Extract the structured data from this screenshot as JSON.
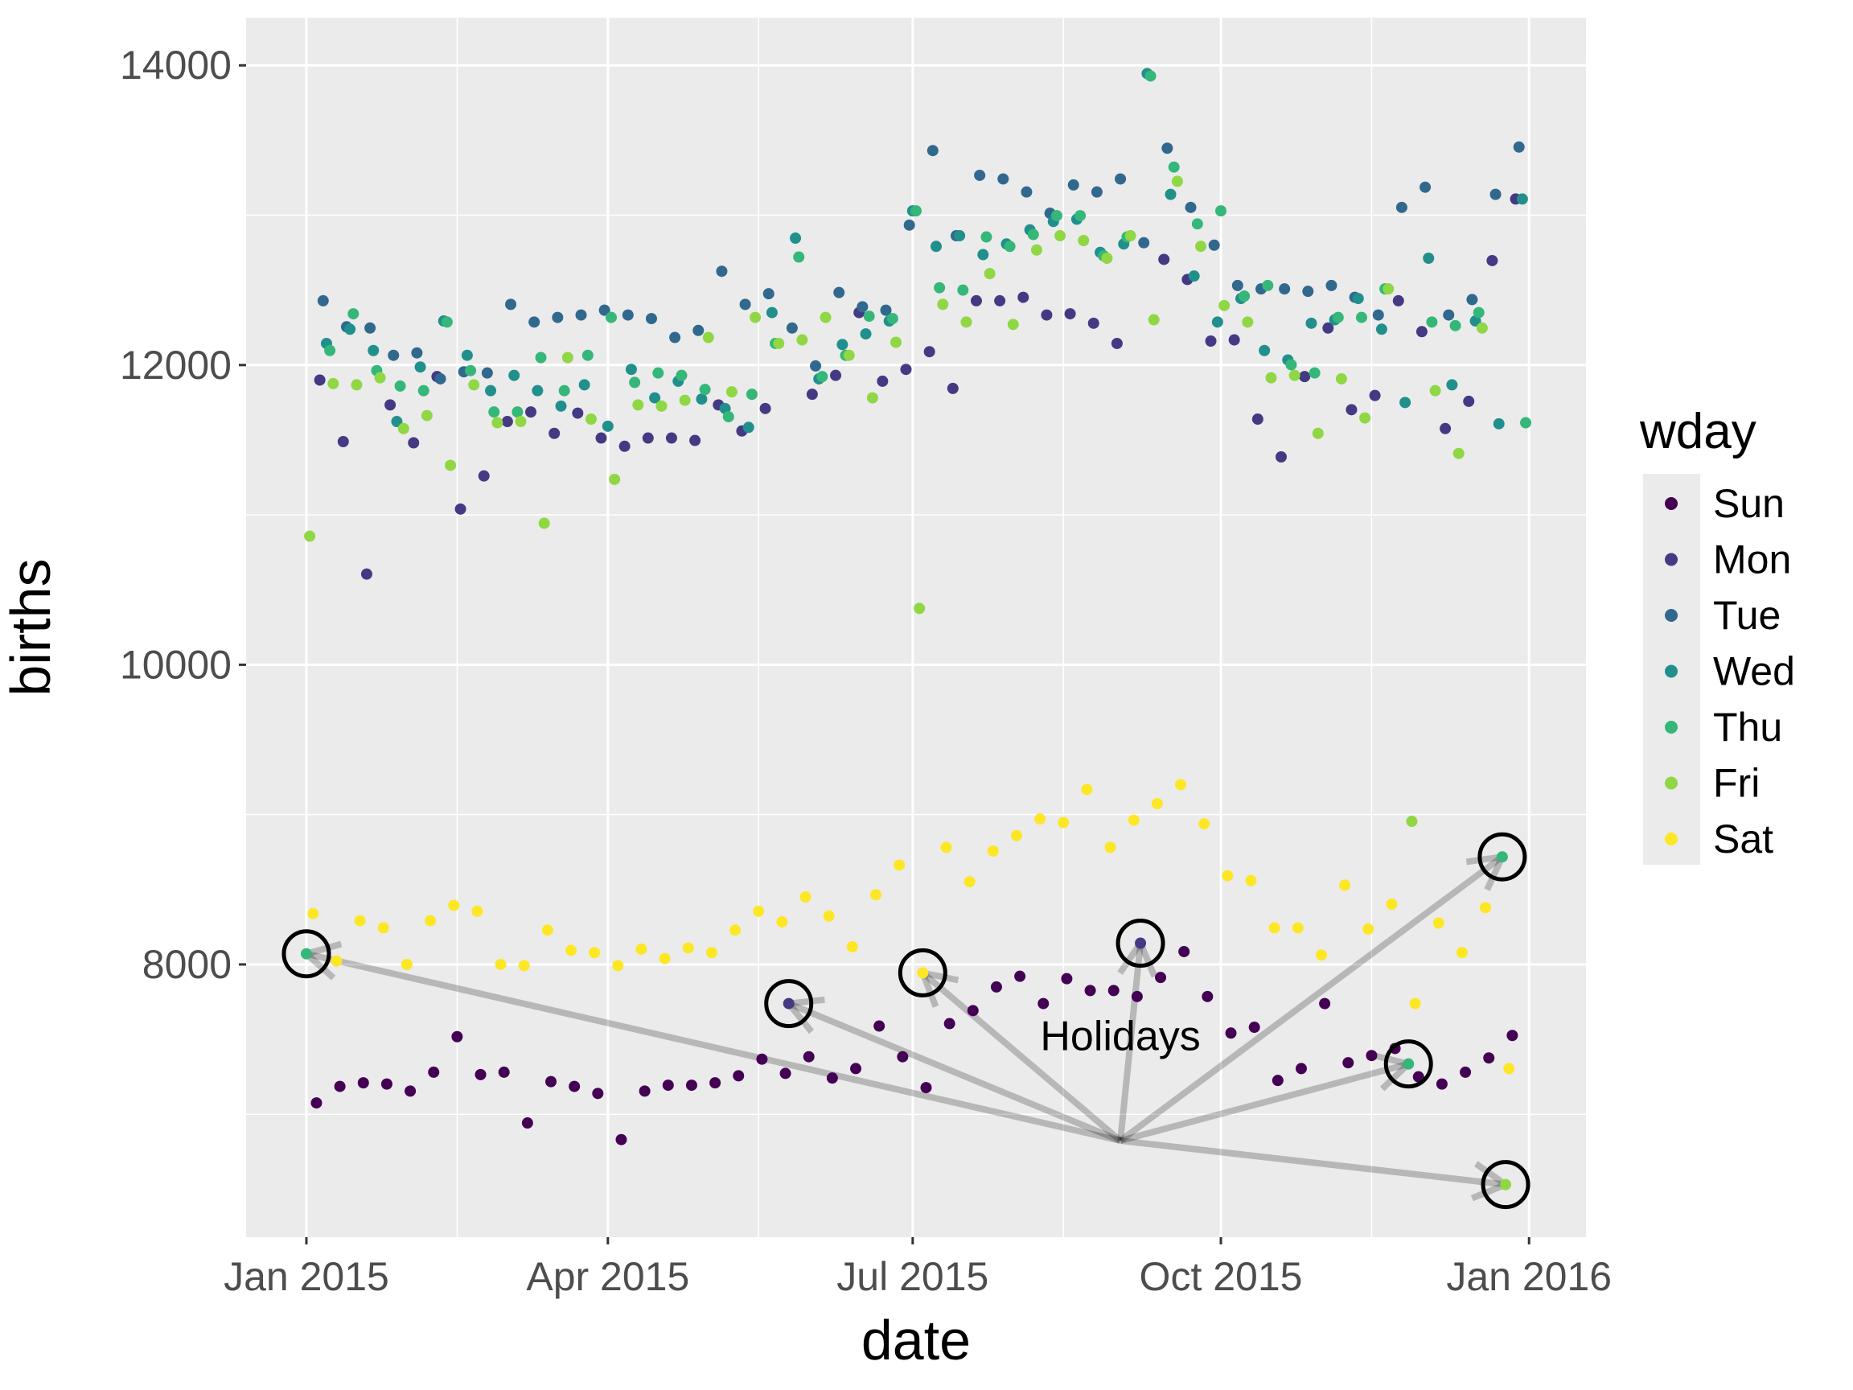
{
  "chart_data": {
    "type": "scatter",
    "title": "",
    "xlabel": "date",
    "ylabel": "births",
    "xlim": [
      "2014-12-14",
      "2016-01-18"
    ],
    "ylim": [
      6180,
      14318
    ],
    "grid": true,
    "x_ticks": [
      {
        "date": "2015-01-01",
        "label": "Jan 2015"
      },
      {
        "date": "2015-04-01",
        "label": "Apr 2015"
      },
      {
        "date": "2015-07-01",
        "label": "Jul 2015"
      },
      {
        "date": "2015-10-01",
        "label": "Oct 2015"
      },
      {
        "date": "2016-01-01",
        "label": "Jan 2016"
      }
    ],
    "x_minor_ticks": [
      "2015-02-15",
      "2015-05-16",
      "2015-08-15",
      "2015-11-15"
    ],
    "y_ticks": [
      {
        "value": 8000,
        "label": "8000"
      },
      {
        "value": 10000,
        "label": "10000"
      },
      {
        "value": 12000,
        "label": "12000"
      },
      {
        "value": 14000,
        "label": "14000"
      }
    ],
    "y_minor_ticks": [
      7000,
      9000,
      11000,
      13000
    ],
    "legend": {
      "title": "wday",
      "placement": "right"
    },
    "point_interval_days": 7,
    "series": [
      {
        "name": "Sun",
        "color": "#440154",
        "first_date": "2015-01-04",
        "values": [
          7076,
          7186,
          7210,
          7202,
          7155,
          7281,
          7518,
          7265,
          7281,
          6942,
          7218,
          7186,
          7139,
          6831,
          7155,
          7194,
          7194,
          7210,
          7257,
          7368,
          7273,
          7384,
          7242,
          7305,
          7589,
          7384,
          7178,
          7605,
          7692,
          7850,
          7921,
          7739,
          7905,
          7826,
          7826,
          7786,
          7913,
          8086,
          7786,
          7542,
          7581,
          7226,
          7305,
          7739,
          7344,
          7392,
          7439,
          7250,
          7202,
          7281,
          7376,
          7526
        ]
      },
      {
        "name": "Mon",
        "color": "#443A83",
        "first_date": "2015-01-05",
        "values": [
          11900,
          11489,
          10605,
          11734,
          11481,
          11923,
          11039,
          11260,
          11623,
          11687,
          11544,
          11679,
          11513,
          11458,
          11513,
          11513,
          11497,
          11734,
          11560,
          11710,
          7739,
          11805,
          11931,
          12350,
          11892,
          11971,
          12089,
          11844,
          12429,
          12429,
          12452,
          12334,
          12342,
          12279,
          12144,
          8142,
          12705,
          12571,
          12160,
          12168,
          11639,
          11387,
          11923,
          12247,
          11702,
          11797,
          12429,
          12223,
          11576,
          11758,
          12697,
          13108
        ]
      },
      {
        "name": "Tue",
        "color": "#31688E",
        "first_date": "2015-01-06",
        "values": [
          12429,
          12255,
          12247,
          12065,
          12081,
          11908,
          11955,
          11947,
          12405,
          12287,
          12318,
          12334,
          12366,
          12334,
          12310,
          12184,
          12231,
          12626,
          12405,
          12476,
          12247,
          11994,
          12484,
          12389,
          12366,
          12934,
          13431,
          12863,
          13266,
          13242,
          13155,
          13013,
          13202,
          13155,
          13242,
          12816,
          13447,
          13052,
          12800,
          12531,
          12508,
          12508,
          12492,
          12531,
          12452,
          12334,
          13052,
          13187,
          12334,
          12437,
          13139,
          13455
        ]
      },
      {
        "name": "Wed",
        "color": "#21908C",
        "first_date": "2015-01-07",
        "values": [
          12144,
          12239,
          12097,
          11623,
          11987,
          12294,
          12065,
          11829,
          11931,
          11829,
          11726,
          11868,
          11592,
          11971,
          11781,
          11892,
          11773,
          11710,
          11584,
          12350,
          12847,
          11908,
          12137,
          12208,
          12294,
          13029,
          12792,
          12863,
          12737,
          12808,
          12902,
          12958,
          12973,
          12752,
          12808,
          13945,
          13139,
          12594,
          12287,
          12444,
          12097,
          12034,
          12279,
          12302,
          12444,
          12239,
          11750,
          12713,
          11868,
          12294,
          11608,
          13108
        ]
      },
      {
        "name": "Thu",
        "color": "#35B779",
        "first_date": "2015-01-01",
        "values": [
          8071,
          12097,
          12342,
          11963,
          11860,
          11829,
          12287,
          11963,
          11687,
          11687,
          12050,
          11829,
          12065,
          12318,
          11884,
          11947,
          11931,
          11837,
          11655,
          11805,
          12144,
          12721,
          11923,
          12065,
          12326,
          12310,
          13029,
          12516,
          12500,
          12855,
          12792,
          12871,
          12997,
          12997,
          12729,
          12855,
          13929,
          13321,
          12942,
          13029,
          12460,
          12531,
          12002,
          11947,
          12318,
          12318,
          12508,
          7336,
          12287,
          12263,
          12350,
          8718,
          11615
        ]
      },
      {
        "name": "Fri",
        "color": "#8FD744",
        "first_date": "2015-01-02",
        "values": [
          10858,
          11876,
          11868,
          11915,
          11576,
          11663,
          11331,
          11868,
          11615,
          11623,
          10944,
          12050,
          11639,
          11237,
          11734,
          11726,
          11765,
          12184,
          11821,
          12318,
          12144,
          12168,
          12318,
          12065,
          11781,
          12152,
          10376,
          12405,
          12287,
          12610,
          12271,
          12768,
          12863,
          12831,
          12713,
          12863,
          12302,
          13226,
          12792,
          12397,
          12287,
          11915,
          11931,
          11544,
          11908,
          11647,
          12508,
          8955,
          11829,
          11410,
          12247,
          6531
        ]
      },
      {
        "name": "Sat",
        "color": "#FDE725",
        "first_date": "2015-01-03",
        "values": [
          8339,
          8023,
          8292,
          8244,
          8000,
          8292,
          8394,
          8355,
          8000,
          7992,
          8229,
          8094,
          8079,
          7992,
          8102,
          8039,
          8110,
          8079,
          8229,
          8355,
          8284,
          8450,
          8323,
          8118,
          8465,
          8663,
          7944,
          8781,
          8552,
          8757,
          8860,
          8971,
          8947,
          9168,
          8781,
          8963,
          9073,
          9200,
          8939,
          8592,
          8560,
          8244,
          8244,
          8063,
          8529,
          8236,
          8402,
          7739,
          8276,
          8079,
          8379,
          7305
        ]
      }
    ],
    "annotation": {
      "label": "Holidays",
      "label_date": "2015-09-01",
      "label_births": 7520,
      "arrow_origin": {
        "date": "2015-09-01",
        "births": 6824
      },
      "points": [
        {
          "date": "2015-01-01",
          "births": 8071
        },
        {
          "date": "2015-05-25",
          "births": 7739
        },
        {
          "date": "2015-07-04",
          "births": 7944
        },
        {
          "date": "2015-09-07",
          "births": 8142
        },
        {
          "date": "2015-11-26",
          "births": 7336
        },
        {
          "date": "2015-12-24",
          "births": 8718
        },
        {
          "date": "2015-12-25",
          "births": 6531
        }
      ]
    }
  }
}
